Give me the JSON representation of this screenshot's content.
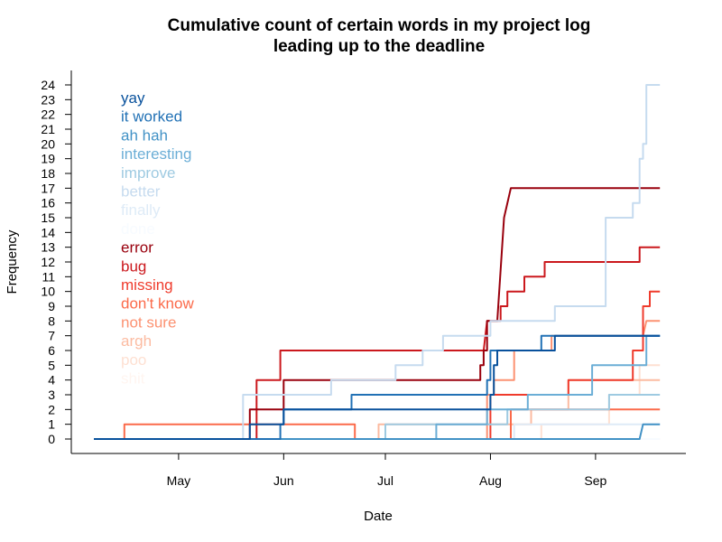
{
  "chart_data": {
    "type": "line",
    "title": "Cumulative count of certain words in my project log",
    "subtitle": "leading up to the deadline",
    "xlabel": "Date",
    "ylabel": "Frequency",
    "xlim": [
      "2014-04-06",
      "2014-09-21"
    ],
    "ylim": [
      0,
      24
    ],
    "x_ticks": [
      {
        "label": "May",
        "date": "2014-05-01"
      },
      {
        "label": "Jun",
        "date": "2014-06-01"
      },
      {
        "label": "Jul",
        "date": "2014-07-01"
      },
      {
        "label": "Aug",
        "date": "2014-08-01"
      },
      {
        "label": "Sep",
        "date": "2014-09-01"
      }
    ],
    "y_ticks": [
      0,
      1,
      2,
      3,
      4,
      5,
      6,
      7,
      8,
      9,
      10,
      11,
      12,
      13,
      14,
      15,
      16,
      17,
      18,
      19,
      20,
      21,
      22,
      23,
      24
    ],
    "grid": false,
    "legend_position": "top-left",
    "series": [
      {
        "name": "yay",
        "color": "#08519c",
        "points": [
          [
            "2014-04-06",
            0
          ],
          [
            "2014-05-22",
            0
          ],
          [
            "2014-05-22",
            1
          ],
          [
            "2014-06-01",
            1
          ],
          [
            "2014-06-01",
            2
          ],
          [
            "2014-07-31",
            2
          ],
          [
            "2014-08-01",
            2
          ],
          [
            "2014-08-01",
            3
          ],
          [
            "2014-08-02",
            3
          ],
          [
            "2014-08-02",
            5
          ],
          [
            "2014-08-03",
            5
          ],
          [
            "2014-08-03",
            6
          ],
          [
            "2014-08-20",
            6
          ],
          [
            "2014-08-20",
            7
          ],
          [
            "2014-09-20",
            7
          ]
        ]
      },
      {
        "name": "it worked",
        "color": "#2171b5",
        "points": [
          [
            "2014-04-06",
            0
          ],
          [
            "2014-05-31",
            0
          ],
          [
            "2014-05-31",
            1
          ],
          [
            "2014-06-01",
            1
          ],
          [
            "2014-06-01",
            2
          ],
          [
            "2014-06-21",
            2
          ],
          [
            "2014-06-21",
            3
          ],
          [
            "2014-07-31",
            3
          ],
          [
            "2014-07-31",
            4
          ],
          [
            "2014-08-01",
            4
          ],
          [
            "2014-08-01",
            6
          ],
          [
            "2014-08-16",
            6
          ],
          [
            "2014-08-16",
            7
          ],
          [
            "2014-09-20",
            7
          ]
        ]
      },
      {
        "name": "ah hah",
        "color": "#4292c6",
        "points": [
          [
            "2014-04-06",
            0
          ],
          [
            "2014-09-14",
            0
          ],
          [
            "2014-09-15",
            1
          ],
          [
            "2014-09-20",
            1
          ]
        ]
      },
      {
        "name": "interesting",
        "color": "#6baed6",
        "points": [
          [
            "2014-04-06",
            0
          ],
          [
            "2014-07-16",
            0
          ],
          [
            "2014-07-16",
            1
          ],
          [
            "2014-07-31",
            1
          ],
          [
            "2014-07-31",
            2
          ],
          [
            "2014-08-12",
            2
          ],
          [
            "2014-08-12",
            3
          ],
          [
            "2014-08-31",
            3
          ],
          [
            "2014-08-31",
            5
          ],
          [
            "2014-09-16",
            5
          ],
          [
            "2014-09-16",
            7
          ],
          [
            "2014-09-20",
            7
          ]
        ]
      },
      {
        "name": "improve",
        "color": "#9ecae1",
        "points": [
          [
            "2014-04-06",
            0
          ],
          [
            "2014-07-01",
            0
          ],
          [
            "2014-07-01",
            1
          ],
          [
            "2014-08-06",
            1
          ],
          [
            "2014-08-06",
            2
          ],
          [
            "2014-09-05",
            2
          ],
          [
            "2014-09-05",
            3
          ],
          [
            "2014-09-20",
            3
          ]
        ]
      },
      {
        "name": "better",
        "color": "#c6dbef",
        "points": [
          [
            "2014-04-06",
            0
          ],
          [
            "2014-05-20",
            0
          ],
          [
            "2014-05-20",
            3
          ],
          [
            "2014-06-15",
            3
          ],
          [
            "2014-06-15",
            4
          ],
          [
            "2014-07-04",
            4
          ],
          [
            "2014-07-04",
            5
          ],
          [
            "2014-07-12",
            5
          ],
          [
            "2014-07-12",
            6
          ],
          [
            "2014-07-18",
            6
          ],
          [
            "2014-07-18",
            7
          ],
          [
            "2014-08-01",
            7
          ],
          [
            "2014-08-01",
            8
          ],
          [
            "2014-08-20",
            8
          ],
          [
            "2014-08-20",
            9
          ],
          [
            "2014-09-04",
            9
          ],
          [
            "2014-09-04",
            15
          ],
          [
            "2014-09-12",
            15
          ],
          [
            "2014-09-12",
            16
          ],
          [
            "2014-09-14",
            16
          ],
          [
            "2014-09-14",
            19
          ],
          [
            "2014-09-15",
            19
          ],
          [
            "2014-09-15",
            20
          ],
          [
            "2014-09-16",
            20
          ],
          [
            "2014-09-16",
            24
          ],
          [
            "2014-09-20",
            24
          ]
        ]
      },
      {
        "name": "finally",
        "color": "#deebf7",
        "points": [
          [
            "2014-04-06",
            0
          ],
          [
            "2014-08-08",
            0
          ],
          [
            "2014-08-08",
            1
          ],
          [
            "2014-09-20",
            1
          ]
        ]
      },
      {
        "name": "done",
        "color": "#f7fbff",
        "points": [
          [
            "2014-04-06",
            0
          ],
          [
            "2014-09-20",
            0
          ]
        ]
      },
      {
        "name": "error",
        "color": "#99000d",
        "points": [
          [
            "2014-04-06",
            0
          ],
          [
            "2014-05-22",
            0
          ],
          [
            "2014-05-22",
            2
          ],
          [
            "2014-06-01",
            2
          ],
          [
            "2014-06-01",
            4
          ],
          [
            "2014-07-29",
            4
          ],
          [
            "2014-07-29",
            5
          ],
          [
            "2014-07-30",
            5
          ],
          [
            "2014-07-30",
            6
          ],
          [
            "2014-07-31",
            6
          ],
          [
            "2014-07-31",
            8
          ],
          [
            "2014-08-03",
            8
          ],
          [
            "2014-08-05",
            15
          ],
          [
            "2014-08-07",
            17
          ],
          [
            "2014-09-20",
            17
          ]
        ]
      },
      {
        "name": "bug",
        "color": "#cb181d",
        "points": [
          [
            "2014-04-06",
            0
          ],
          [
            "2014-05-24",
            0
          ],
          [
            "2014-05-24",
            4
          ],
          [
            "2014-05-31",
            4
          ],
          [
            "2014-05-31",
            6
          ],
          [
            "2014-07-30",
            6
          ],
          [
            "2014-07-31",
            8
          ],
          [
            "2014-08-04",
            8
          ],
          [
            "2014-08-04",
            9
          ],
          [
            "2014-08-06",
            9
          ],
          [
            "2014-08-06",
            10
          ],
          [
            "2014-08-11",
            10
          ],
          [
            "2014-08-11",
            11
          ],
          [
            "2014-08-17",
            11
          ],
          [
            "2014-08-17",
            12
          ],
          [
            "2014-09-14",
            12
          ],
          [
            "2014-09-14",
            13
          ],
          [
            "2014-09-20",
            13
          ]
        ]
      },
      {
        "name": "missing",
        "color": "#ef3b2c",
        "points": [
          [
            "2014-04-06",
            0
          ],
          [
            "2014-08-01",
            0
          ],
          [
            "2014-08-01",
            3
          ],
          [
            "2014-08-24",
            3
          ],
          [
            "2014-08-24",
            4
          ],
          [
            "2014-09-12",
            4
          ],
          [
            "2014-09-12",
            6
          ],
          [
            "2014-09-15",
            6
          ],
          [
            "2014-09-15",
            9
          ],
          [
            "2014-09-17",
            9
          ],
          [
            "2014-09-17",
            10
          ],
          [
            "2014-09-20",
            10
          ]
        ]
      },
      {
        "name": "don't know",
        "color": "#fb6a4a",
        "points": [
          [
            "2014-04-06",
            0
          ],
          [
            "2014-04-15",
            0
          ],
          [
            "2014-04-15",
            1
          ],
          [
            "2014-06-22",
            1
          ],
          [
            "2014-06-22",
            0
          ],
          [
            "2014-08-07",
            0
          ],
          [
            "2014-08-07",
            2
          ],
          [
            "2014-09-20",
            2
          ]
        ]
      },
      {
        "name": "not sure",
        "color": "#fc9272",
        "points": [
          [
            "2014-04-06",
            0
          ],
          [
            "2014-07-31",
            0
          ],
          [
            "2014-07-31",
            3
          ],
          [
            "2014-08-02",
            3
          ],
          [
            "2014-08-02",
            4
          ],
          [
            "2014-08-08",
            4
          ],
          [
            "2014-08-08",
            6
          ],
          [
            "2014-08-19",
            6
          ],
          [
            "2014-08-19",
            7
          ],
          [
            "2014-09-15",
            7
          ],
          [
            "2014-09-16",
            8
          ],
          [
            "2014-09-20",
            8
          ]
        ]
      },
      {
        "name": "argh",
        "color": "#fcbba1",
        "points": [
          [
            "2014-04-06",
            0
          ],
          [
            "2014-06-29",
            0
          ],
          [
            "2014-06-29",
            1
          ],
          [
            "2014-08-13",
            1
          ],
          [
            "2014-08-13",
            2
          ],
          [
            "2014-08-24",
            2
          ],
          [
            "2014-08-24",
            4
          ],
          [
            "2014-09-20",
            4
          ]
        ]
      },
      {
        "name": "poo",
        "color": "#fee0d2",
        "points": [
          [
            "2014-04-06",
            0
          ],
          [
            "2014-08-16",
            0
          ],
          [
            "2014-08-16",
            1
          ],
          [
            "2014-09-05",
            1
          ],
          [
            "2014-09-05",
            3
          ],
          [
            "2014-09-14",
            3
          ],
          [
            "2014-09-14",
            5
          ],
          [
            "2014-09-20",
            5
          ]
        ]
      },
      {
        "name": "shit",
        "color": "#fff5f0",
        "points": [
          [
            "2014-04-06",
            0
          ],
          [
            "2014-09-20",
            0
          ]
        ]
      }
    ]
  }
}
